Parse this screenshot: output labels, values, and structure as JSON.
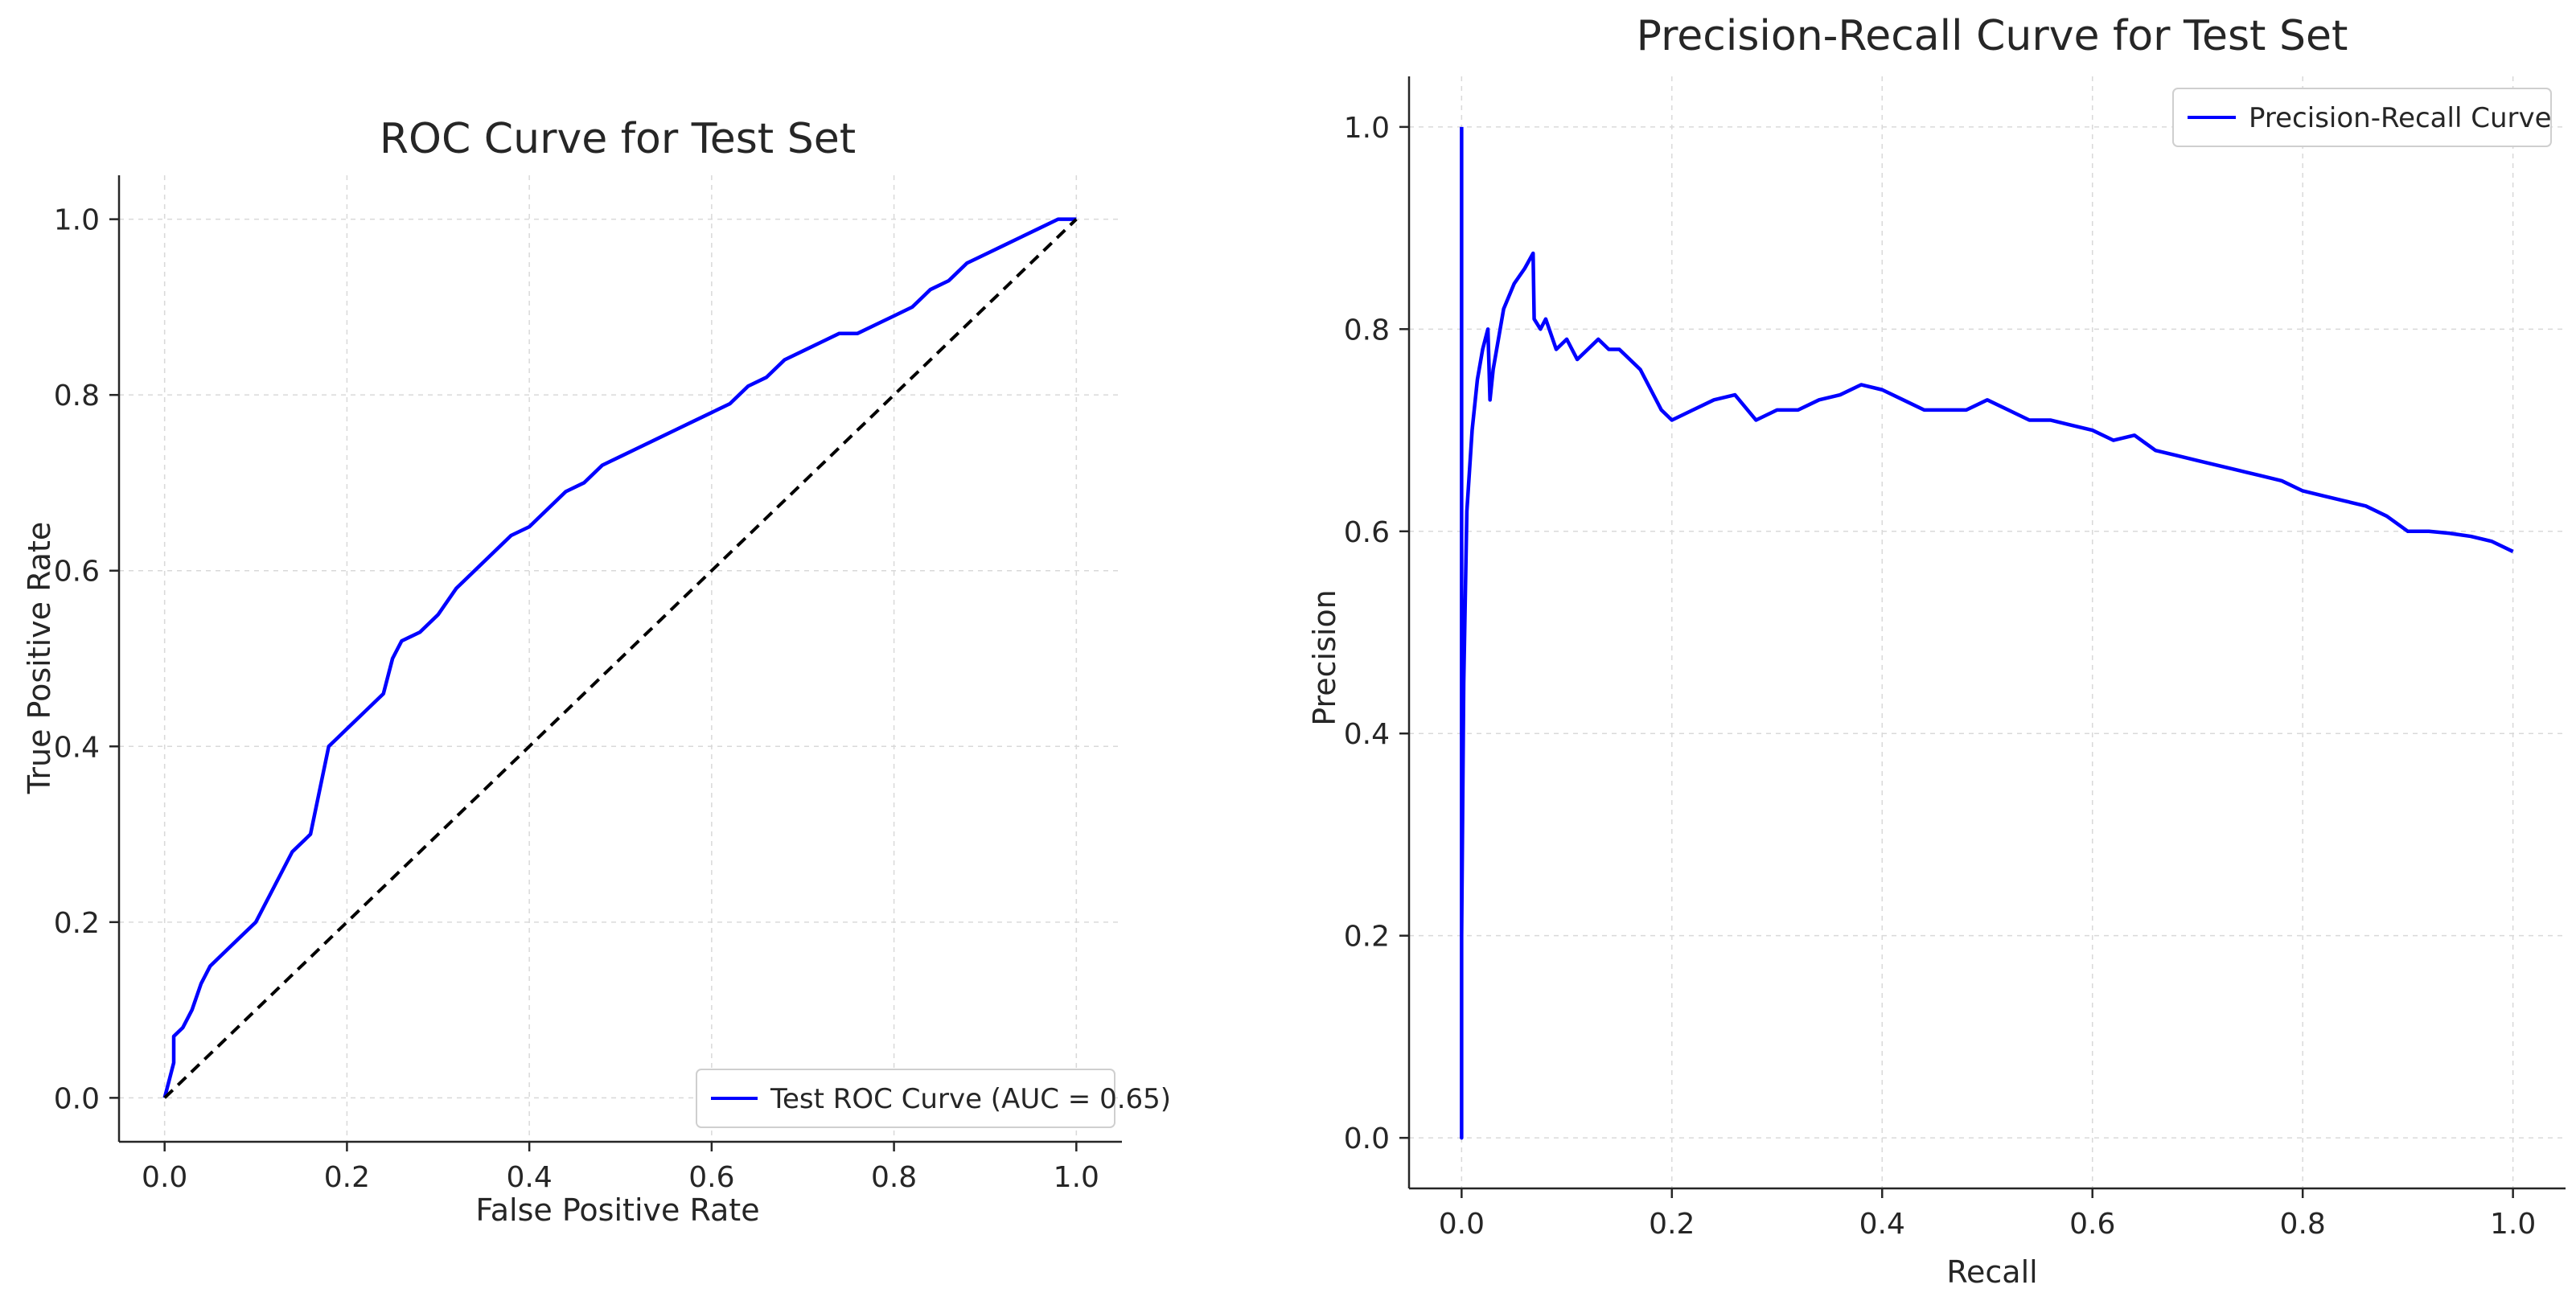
{
  "chart_data": [
    {
      "type": "line",
      "title": "ROC Curve for Test Set",
      "xlabel": "False Positive Rate",
      "ylabel": "True Positive Rate",
      "xlim": [
        -0.05,
        1.05
      ],
      "ylim": [
        -0.05,
        1.05
      ],
      "xticks": [
        "0.0",
        "0.2",
        "0.4",
        "0.6",
        "0.8",
        "1.0"
      ],
      "yticks": [
        "0.0",
        "0.2",
        "0.4",
        "0.6",
        "0.8",
        "1.0"
      ],
      "grid": true,
      "legend": "lower right",
      "series": [
        {
          "name": "Test ROC Curve (AUC = 0.65)",
          "color": "#0000ff",
          "style": "solid",
          "x": [
            0.0,
            0.005,
            0.01,
            0.01,
            0.02,
            0.03,
            0.04,
            0.05,
            0.06,
            0.08,
            0.1,
            0.12,
            0.13,
            0.14,
            0.16,
            0.17,
            0.18,
            0.19,
            0.2,
            0.22,
            0.24,
            0.25,
            0.26,
            0.28,
            0.3,
            0.32,
            0.34,
            0.36,
            0.38,
            0.4,
            0.42,
            0.44,
            0.46,
            0.48,
            0.5,
            0.52,
            0.54,
            0.56,
            0.58,
            0.6,
            0.62,
            0.64,
            0.66,
            0.68,
            0.7,
            0.72,
            0.74,
            0.76,
            0.78,
            0.8,
            0.82,
            0.84,
            0.86,
            0.88,
            0.9,
            0.92,
            0.94,
            0.96,
            0.98,
            1.0
          ],
          "y": [
            0.0,
            0.02,
            0.04,
            0.07,
            0.08,
            0.1,
            0.13,
            0.15,
            0.16,
            0.18,
            0.2,
            0.24,
            0.26,
            0.28,
            0.3,
            0.35,
            0.4,
            0.41,
            0.42,
            0.44,
            0.46,
            0.5,
            0.52,
            0.53,
            0.55,
            0.58,
            0.6,
            0.62,
            0.64,
            0.65,
            0.67,
            0.69,
            0.7,
            0.72,
            0.73,
            0.74,
            0.75,
            0.76,
            0.77,
            0.78,
            0.79,
            0.81,
            0.82,
            0.84,
            0.85,
            0.86,
            0.87,
            0.87,
            0.88,
            0.89,
            0.9,
            0.92,
            0.93,
            0.95,
            0.96,
            0.97,
            0.98,
            0.99,
            1.0,
            1.0
          ]
        },
        {
          "name": "",
          "color": "#000000",
          "style": "dashed",
          "x": [
            0.0,
            1.0
          ],
          "y": [
            0.0,
            1.0
          ]
        }
      ]
    },
    {
      "type": "line",
      "title": "Precision-Recall Curve for Test Set",
      "xlabel": "Recall",
      "ylabel": "Precision",
      "xlim": [
        -0.05,
        1.05
      ],
      "ylim": [
        -0.05,
        1.05
      ],
      "xticks": [
        "0.0",
        "0.2",
        "0.4",
        "0.6",
        "0.8",
        "1.0"
      ],
      "yticks": [
        "0.0",
        "0.2",
        "0.4",
        "0.6",
        "0.8",
        "1.0"
      ],
      "grid": true,
      "legend": "upper right",
      "series": [
        {
          "name": "Precision-Recall Curve",
          "color": "#0000ff",
          "style": "solid",
          "x": [
            0.0,
            0.0,
            0.0,
            0.002,
            0.005,
            0.01,
            0.015,
            0.02,
            0.025,
            0.027,
            0.03,
            0.04,
            0.05,
            0.06,
            0.068,
            0.069,
            0.075,
            0.08,
            0.09,
            0.1,
            0.11,
            0.12,
            0.13,
            0.14,
            0.15,
            0.16,
            0.17,
            0.18,
            0.19,
            0.2,
            0.22,
            0.24,
            0.26,
            0.28,
            0.3,
            0.32,
            0.34,
            0.36,
            0.38,
            0.4,
            0.42,
            0.44,
            0.46,
            0.48,
            0.5,
            0.52,
            0.54,
            0.56,
            0.58,
            0.6,
            0.62,
            0.64,
            0.66,
            0.68,
            0.7,
            0.72,
            0.74,
            0.76,
            0.78,
            0.8,
            0.82,
            0.84,
            0.86,
            0.88,
            0.9,
            0.92,
            0.94,
            0.96,
            0.98,
            1.0
          ],
          "y": [
            1.0,
            0.0,
            0.2,
            0.45,
            0.62,
            0.7,
            0.75,
            0.78,
            0.8,
            0.73,
            0.76,
            0.82,
            0.845,
            0.86,
            0.875,
            0.81,
            0.8,
            0.81,
            0.78,
            0.79,
            0.77,
            0.78,
            0.79,
            0.78,
            0.78,
            0.77,
            0.76,
            0.74,
            0.72,
            0.71,
            0.72,
            0.73,
            0.735,
            0.71,
            0.72,
            0.72,
            0.73,
            0.735,
            0.745,
            0.74,
            0.73,
            0.72,
            0.72,
            0.72,
            0.73,
            0.72,
            0.71,
            0.71,
            0.705,
            0.7,
            0.69,
            0.695,
            0.68,
            0.675,
            0.67,
            0.665,
            0.66,
            0.655,
            0.65,
            0.64,
            0.635,
            0.63,
            0.625,
            0.615,
            0.6,
            0.6,
            0.598,
            0.595,
            0.59,
            0.58
          ]
        }
      ]
    }
  ]
}
